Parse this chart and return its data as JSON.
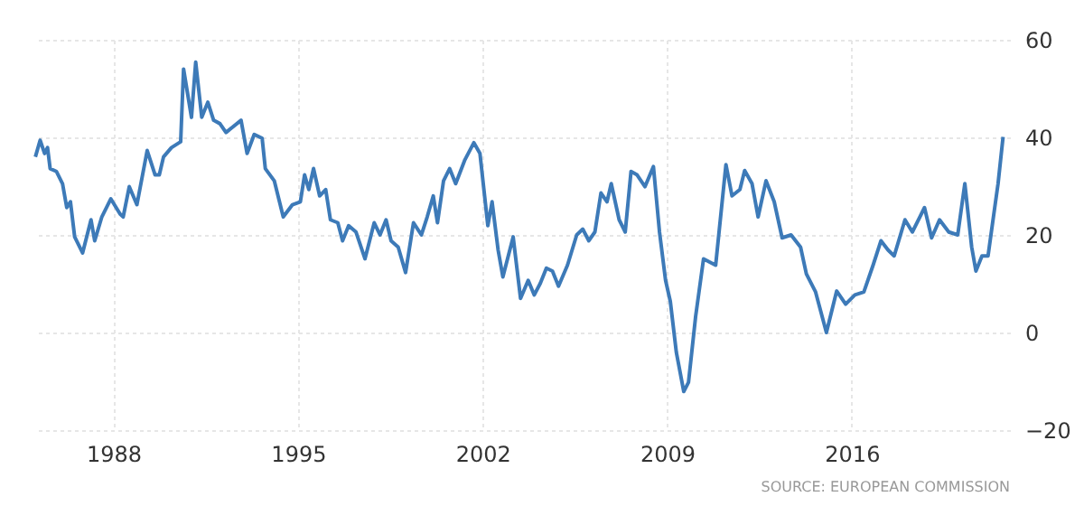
{
  "chart_data": {
    "type": "line",
    "xlim": [
      1985,
      2022
    ],
    "ylim": [
      -20,
      60
    ],
    "xticks": [
      1988,
      1995,
      2002,
      2009,
      2016
    ],
    "yticks": [
      -20,
      0,
      20,
      40,
      60
    ],
    "grid": true,
    "marker": "none",
    "line_style": "solid",
    "annotations": [
      "SOURCE: EUROPEAN COMMISSION"
    ],
    "series": [
      {
        "color": "#3d7ab8",
        "x": [
          1985.04,
          1985.22,
          1985.39,
          1985.5,
          1985.6,
          1985.84,
          1986.07,
          1986.23,
          1986.37,
          1986.53,
          1986.83,
          1987.15,
          1987.29,
          1987.56,
          1987.9,
          1988.25,
          1988.37,
          1988.6,
          1988.89,
          1989.28,
          1989.58,
          1989.74,
          1989.9,
          1990.2,
          1990.55,
          1990.66,
          1990.96,
          1991.12,
          1991.35,
          1991.58,
          1991.8,
          1992.04,
          1992.27,
          1992.84,
          1993.07,
          1993.34,
          1993.64,
          1993.76,
          1994.1,
          1994.44,
          1994.79,
          1995.09,
          1995.25,
          1995.41,
          1995.59,
          1995.82,
          1996.05,
          1996.23,
          1996.51,
          1996.69,
          1996.92,
          1997.2,
          1997.54,
          1997.89,
          1998.11,
          1998.34,
          1998.53,
          1998.8,
          1999.08,
          1999.38,
          1999.68,
          1999.9,
          2000.13,
          2000.29,
          2000.52,
          2000.75,
          2000.98,
          2001.33,
          2001.67,
          2001.9,
          2002.2,
          2002.36,
          2002.59,
          2002.77,
          2003.16,
          2003.44,
          2003.73,
          2003.96,
          2004.19,
          2004.42,
          2004.65,
          2004.88,
          2005.22,
          2005.57,
          2005.8,
          2006.03,
          2006.26,
          2006.49,
          2006.72,
          2006.88,
          2007.18,
          2007.41,
          2007.63,
          2007.86,
          2008.16,
          2008.48,
          2008.71,
          2008.94,
          2009.12,
          2009.35,
          2009.63,
          2009.81,
          2010.08,
          2010.38,
          2010.84,
          2011.23,
          2011.46,
          2011.76,
          2011.94,
          2012.22,
          2012.45,
          2012.75,
          2013.06,
          2013.36,
          2013.7,
          2014.06,
          2014.28,
          2014.63,
          2015.04,
          2015.43,
          2015.77,
          2016.12,
          2016.46,
          2016.81,
          2017.11,
          2017.38,
          2017.61,
          2018.02,
          2018.3,
          2018.76,
          2019.03,
          2019.33,
          2019.68,
          2020.02,
          2020.29,
          2020.55,
          2020.71,
          2020.94,
          2021.17,
          2021.39,
          2021.55,
          2021.74
        ],
        "values": [
          36,
          39.4,
          36.7,
          37.9,
          33.6,
          33,
          30.5,
          25.6,
          26.8,
          19.6,
          16.3,
          23.1,
          18.8,
          23.7,
          27.4,
          24.3,
          23.7,
          29.9,
          26.2,
          37.3,
          32.3,
          32.3,
          36,
          37.9,
          39.1,
          54,
          44.1,
          55.4,
          44.1,
          47.2,
          43.5,
          42.8,
          41,
          43.5,
          36.7,
          40.6,
          39.8,
          33.6,
          31.1,
          23.7,
          26.2,
          26.8,
          32.3,
          29.3,
          33.6,
          28,
          29.3,
          23.1,
          22.5,
          18.8,
          21.9,
          20.6,
          15.1,
          22.5,
          20,
          23.1,
          18.8,
          17.5,
          12.3,
          22.5,
          20,
          23.7,
          28,
          22.5,
          31.1,
          33.6,
          30.5,
          35.4,
          38.9,
          36.7,
          21.9,
          26.8,
          16.9,
          11.4,
          19.6,
          7,
          10.7,
          7.7,
          10.1,
          13.2,
          12.6,
          9.5,
          13.8,
          20,
          21.2,
          18.8,
          20.6,
          28.6,
          26.8,
          30.5,
          23.1,
          20.6,
          33,
          32.3,
          29.9,
          34,
          20.6,
          10.7,
          6.4,
          -4.1,
          -12.1,
          -10.2,
          3.3,
          15.1,
          13.8,
          34.4,
          28,
          29.3,
          33.2,
          30.5,
          23.7,
          31.1,
          26.8,
          19.4,
          20,
          17.5,
          12,
          8.3,
          0,
          8.5,
          5.8,
          7.7,
          8.3,
          13.8,
          18.8,
          16.9,
          15.7,
          23.1,
          20.6,
          25.6,
          19.4,
          23.1,
          20.6,
          20,
          30.5,
          17.5,
          12.6,
          15.7,
          15.7,
          24.3,
          30.5,
          40.1
        ]
      }
    ]
  }
}
